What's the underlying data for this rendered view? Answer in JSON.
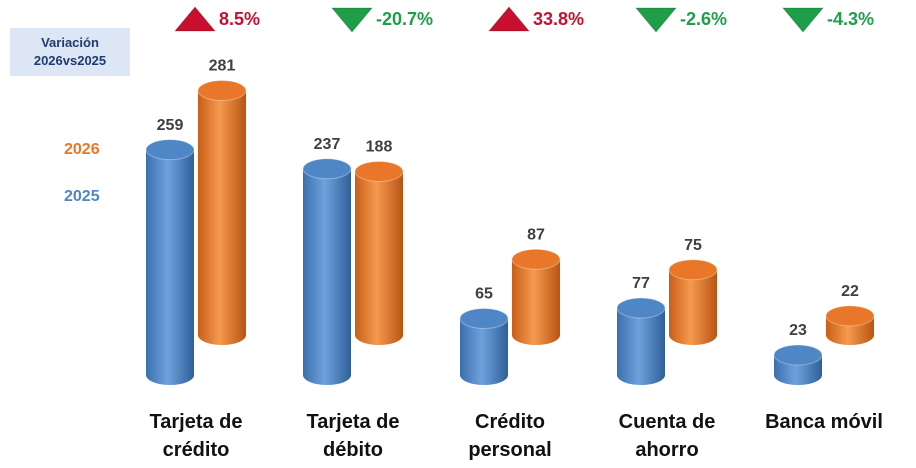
{
  "chart_data": {
    "type": "bar3d",
    "categories": [
      "Tarjeta de crédito",
      "Tarjeta de débito",
      "Crédito personal",
      "Cuenta de ahorro",
      "Banca móvil"
    ],
    "series": [
      {
        "name": "2025",
        "color": "#4f86c6",
        "values": [
          259,
          237,
          65,
          77,
          23
        ]
      },
      {
        "name": "2026",
        "color": "#e8772a",
        "values": [
          281,
          188,
          87,
          75,
          22
        ]
      }
    ],
    "variation": {
      "label": "Variación 2026vs2025",
      "values": [
        8.5,
        -20.7,
        33.8,
        -2.6,
        -4.3
      ],
      "value_labels": [
        "8.5%",
        "-20.7%",
        "33.8%",
        "-2.6%",
        "-4.3%"
      ],
      "up_color": "#c8102e",
      "down_color": "#1f9e4a"
    }
  }
}
